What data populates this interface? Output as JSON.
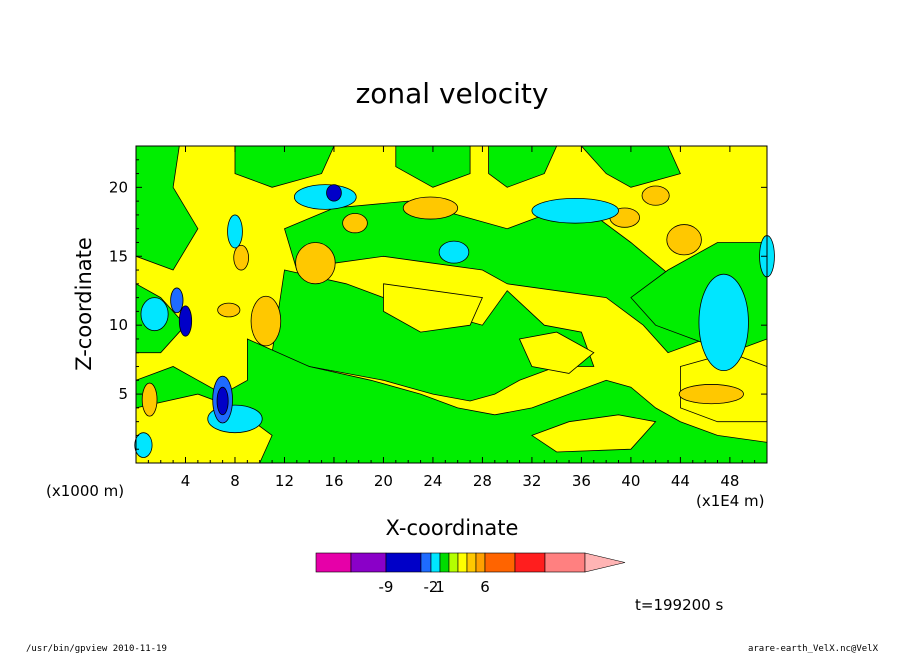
{
  "chart_data": {
    "type": "heatmap",
    "title": "zonal velocity",
    "xlabel": "X-coordinate",
    "ylabel": "Z-coordinate",
    "x_unit": "(x1E4 m)",
    "y_unit": "(x1000 m)",
    "xlim": [
      0,
      51
    ],
    "ylim": [
      0,
      23
    ],
    "x_ticks": [
      4,
      8,
      12,
      16,
      20,
      24,
      28,
      32,
      36,
      40,
      44,
      48
    ],
    "y_ticks": [
      5,
      10,
      15,
      20
    ],
    "time_label": "t=199200 s",
    "colorbar": {
      "bins": [
        {
          "color": "#e600a8"
        },
        {
          "color": "#8a00c8"
        },
        {
          "color": "#0000c8"
        },
        {
          "color": "#1e6bff"
        },
        {
          "color": "#00e6ff"
        },
        {
          "color": "#00dc00"
        },
        {
          "color": "#b4ff00"
        },
        {
          "color": "#ffff00"
        },
        {
          "color": "#ffc800"
        },
        {
          "color": "#ffa000"
        },
        {
          "color": "#ff6400"
        },
        {
          "color": "#ff1e1e"
        },
        {
          "color": "#ff8080"
        },
        {
          "color": "#ffb4b4"
        }
      ],
      "labels": [
        "-9",
        "-2",
        "1",
        "6"
      ]
    },
    "regions": [
      {
        "value": 1,
        "color": "#ffff00",
        "note": "background"
      },
      {
        "value": 0,
        "color": "#00ee00"
      },
      {
        "value": 3,
        "color": "#ffc800"
      },
      {
        "value": -1,
        "color": "#00e6ff"
      },
      {
        "value": -4,
        "color": "#1e6bff"
      },
      {
        "value": -6,
        "color": "#0000c8"
      }
    ]
  },
  "footer": {
    "left": "/usr/bin/gpview   2010-11-19",
    "right": "arare-earth_VelX.nc@VelX"
  }
}
